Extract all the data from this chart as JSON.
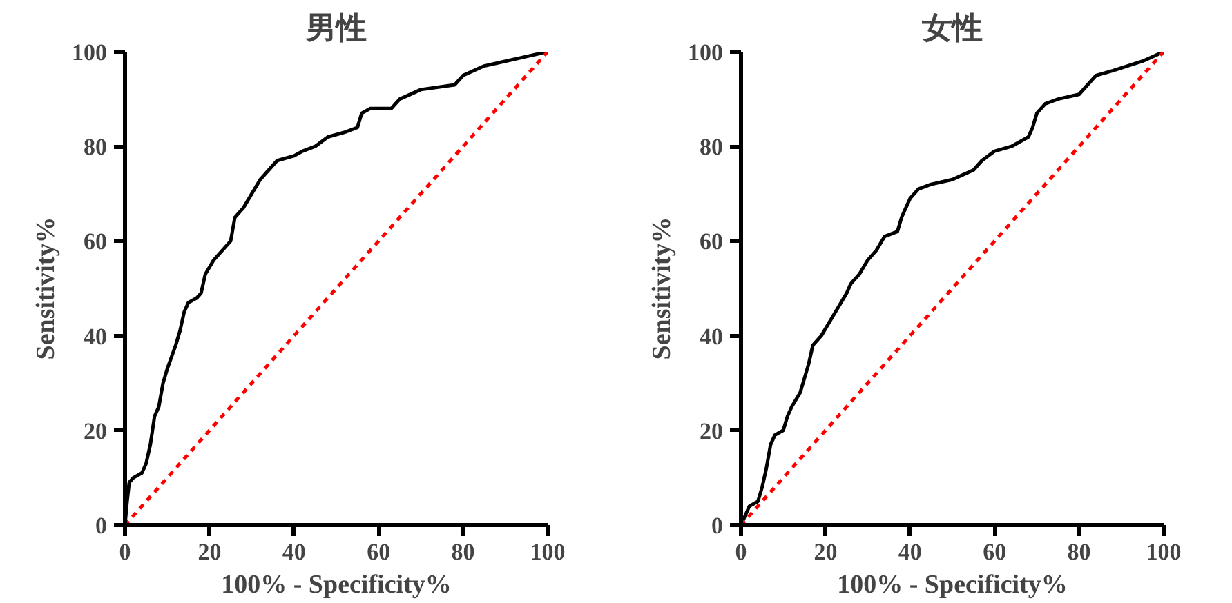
{
  "chart_data": [
    {
      "type": "line",
      "title": "男性",
      "xlabel": "100% - Specificity%",
      "ylabel": "Sensitivity%",
      "xlim": [
        0,
        100
      ],
      "ylim": [
        0,
        100
      ],
      "xticks": [
        0,
        20,
        40,
        60,
        80,
        100
      ],
      "yticks": [
        0,
        20,
        40,
        60,
        80,
        100
      ],
      "grid": false,
      "series": [
        {
          "color": "#000000",
          "line_style": "solid",
          "x": [
            0,
            0.5,
            1,
            2,
            4,
            5,
            6,
            7,
            8,
            9,
            10,
            12,
            13,
            14,
            15,
            17,
            18,
            19,
            21,
            23,
            25,
            26,
            28,
            30,
            32,
            34,
            36,
            40,
            42,
            45,
            48,
            52,
            55,
            56,
            58,
            63,
            65,
            70,
            78,
            80,
            85,
            90,
            95,
            100
          ],
          "values": [
            0,
            5,
            9,
            10,
            11,
            13,
            17,
            23,
            25,
            30,
            33,
            38,
            41,
            45,
            47,
            48,
            49,
            53,
            56,
            58,
            60,
            65,
            67,
            70,
            73,
            75,
            77,
            78,
            79,
            80,
            82,
            83,
            84,
            87,
            88,
            88,
            90,
            92,
            93,
            95,
            97,
            98,
            99,
            100
          ]
        },
        {
          "color": "#ff0000",
          "line_style": "dashed",
          "x": [
            0,
            100
          ],
          "values": [
            0,
            100
          ]
        }
      ]
    },
    {
      "type": "line",
      "title": "女性",
      "xlabel": "100% - Specificity%",
      "ylabel": "Sensitivity%",
      "xlim": [
        0,
        100
      ],
      "ylim": [
        0,
        100
      ],
      "xticks": [
        0,
        20,
        40,
        60,
        80,
        100
      ],
      "yticks": [
        0,
        20,
        40,
        60,
        80,
        100
      ],
      "grid": false,
      "series": [
        {
          "color": "#000000",
          "line_style": "solid",
          "x": [
            0,
            1,
            2,
            4,
            5,
            6,
            7,
            8,
            10,
            11,
            12,
            14,
            15,
            16,
            17,
            19,
            21,
            23,
            25,
            26,
            28,
            30,
            32,
            34,
            37,
            38,
            40,
            42,
            45,
            50,
            55,
            57,
            60,
            64,
            68,
            69,
            70,
            72,
            75,
            80,
            82,
            84,
            88,
            95,
            100
          ],
          "values": [
            0,
            2,
            4,
            5,
            8,
            12,
            17,
            19,
            20,
            23,
            25,
            28,
            31,
            34,
            38,
            40,
            43,
            46,
            49,
            51,
            53,
            56,
            58,
            61,
            62,
            65,
            69,
            71,
            72,
            73,
            75,
            77,
            79,
            80,
            82,
            84,
            87,
            89,
            90,
            91,
            93,
            95,
            96,
            98,
            100
          ]
        },
        {
          "color": "#ff0000",
          "line_style": "dashed",
          "x": [
            0,
            100
          ],
          "values": [
            0,
            100
          ]
        }
      ]
    }
  ]
}
